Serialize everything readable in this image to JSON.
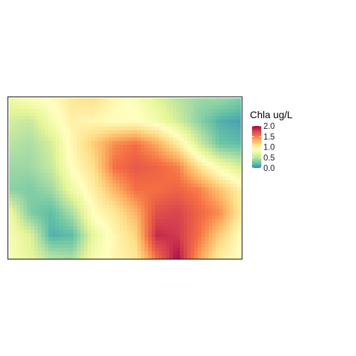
{
  "chart_data": {
    "type": "heatmap",
    "variable": "Chla",
    "legend": {
      "title": "Chla ug/L",
      "ticks": [
        2.0,
        1.5,
        1.0,
        0.5,
        0.0
      ],
      "tick_labels": [
        "2.0",
        "1.5",
        "1.0",
        "0.5",
        "0.0"
      ],
      "range": [
        0.0,
        2.0
      ],
      "placement": "right",
      "colormap": [
        "#3288bd",
        "#66c2a5",
        "#abdda4",
        "#e6f598",
        "#ffffbf",
        "#fee08b",
        "#fdae61",
        "#f46d43",
        "#d53e4f",
        "#9e0142"
      ]
    },
    "axes": {
      "visible": false,
      "grid": false,
      "frame": true
    },
    "field": {
      "description_of_values": "gridded chlorophyll-a concentration, rows north to south, columns west to east",
      "cols": 12,
      "rows": 8,
      "values": [
        [
          0.75,
          0.85,
          0.9,
          1.05,
          1.1,
          0.95,
          0.85,
          0.65,
          0.5,
          0.4,
          0.4,
          0.3
        ],
        [
          0.6,
          0.55,
          0.8,
          1.0,
          0.95,
          0.9,
          0.9,
          0.8,
          0.6,
          0.35,
          0.15,
          0.1
        ],
        [
          0.5,
          0.45,
          0.6,
          0.95,
          1.2,
          1.45,
          1.55,
          1.35,
          1.05,
          0.6,
          0.25,
          0.2
        ],
        [
          0.4,
          0.4,
          0.55,
          0.9,
          1.1,
          1.55,
          1.65,
          1.6,
          1.5,
          1.1,
          0.8,
          0.6
        ],
        [
          0.35,
          0.3,
          0.4,
          0.75,
          1.0,
          1.3,
          1.55,
          1.55,
          1.6,
          1.5,
          1.25,
          1.0
        ],
        [
          0.75,
          0.3,
          0.2,
          0.45,
          0.9,
          1.05,
          1.3,
          1.7,
          1.75,
          1.6,
          1.45,
          1.05
        ],
        [
          0.8,
          0.65,
          0.15,
          0.2,
          0.7,
          0.95,
          1.15,
          1.85,
          1.8,
          1.55,
          1.2,
          0.9
        ],
        [
          0.85,
          0.7,
          0.5,
          0.45,
          0.8,
          0.95,
          1.05,
          1.55,
          1.95,
          1.4,
          1.0,
          0.9
        ]
      ]
    }
  }
}
